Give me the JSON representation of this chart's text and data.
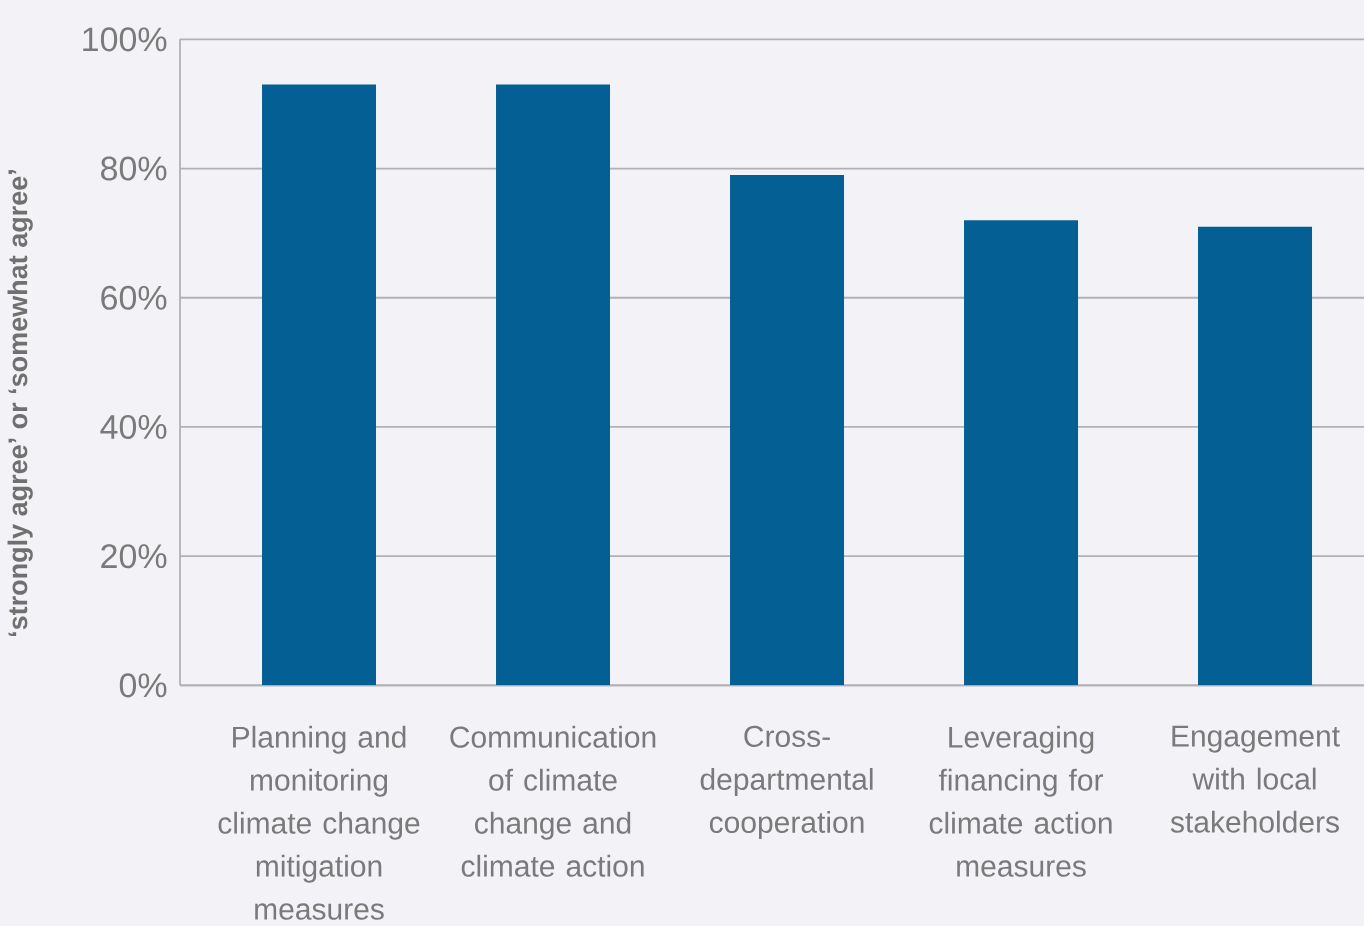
{
  "chart_data": {
    "type": "bar",
    "ylabel": "‘strongly agree’ or ‘somewhat agree’",
    "categories": [
      "Planning and monitoring climate change mitigation measures",
      "Communication of climate change and climate action",
      "Cross-departmental cooperation",
      "Leveraging financing for climate action measures",
      "Engagement with local stakeholders"
    ],
    "values": [
      93,
      93,
      79,
      72,
      71
    ],
    "color": "#035f94",
    "ylim": [
      0,
      100
    ],
    "yticks": [
      {
        "value": 0,
        "label": "0%"
      },
      {
        "value": 20,
        "label": "20%"
      },
      {
        "value": 40,
        "label": "40%"
      },
      {
        "value": 60,
        "label": "60%"
      },
      {
        "value": 80,
        "label": "80%"
      },
      {
        "value": 100,
        "label": "100%"
      }
    ],
    "grid": "y"
  }
}
